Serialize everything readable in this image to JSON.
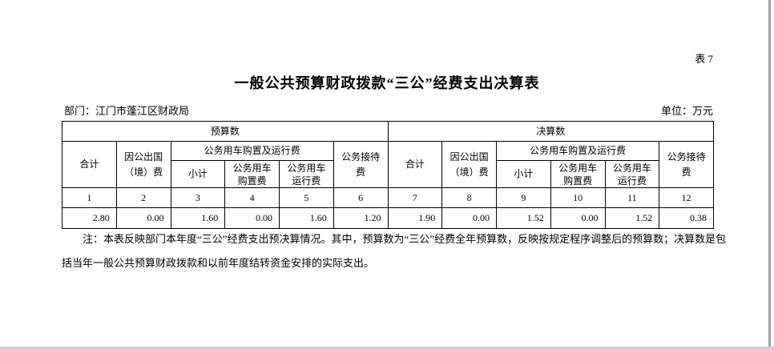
{
  "page": {
    "sheet_label": "表 7",
    "title": "一般公共预算财政拨款“三公”经费支出决算表",
    "department": "部门：江门市蓬江区财政局",
    "unit": "单位：万元"
  },
  "table": {
    "sections": [
      "预算数",
      "决算数"
    ],
    "headers": {
      "total": "合计",
      "abroad_l1": "因公出国",
      "abroad_l2": "（境）费",
      "vehicle_group": "公务用车购置及运行费",
      "subtotal": "小计",
      "purchase_l1": "公务用车",
      "purchase_l2": "购置费",
      "operation_l1": "公务用车",
      "operation_l2": "运行费",
      "reception_l1": "公务接待",
      "reception_l2": "费"
    },
    "column_numbers": [
      "1",
      "2",
      "3",
      "4",
      "5",
      "6",
      "7",
      "8",
      "9",
      "10",
      "11",
      "12"
    ],
    "values": [
      "2.80",
      "0.00",
      "1.60",
      "0.00",
      "1.60",
      "1.20",
      "1.90",
      "0.00",
      "1.52",
      "0.00",
      "1.52",
      "0.38"
    ]
  },
  "note": {
    "line1": "注：本表反映部门本年度“三公”经费支出预决算情况。其中，预算数为“三公”经费全年预算数，反映按规定程序调整后的预算数；决算数是包",
    "line2": "括当年一般公共预算财政拨款和以前年度结转资金安排的实际支出。"
  }
}
